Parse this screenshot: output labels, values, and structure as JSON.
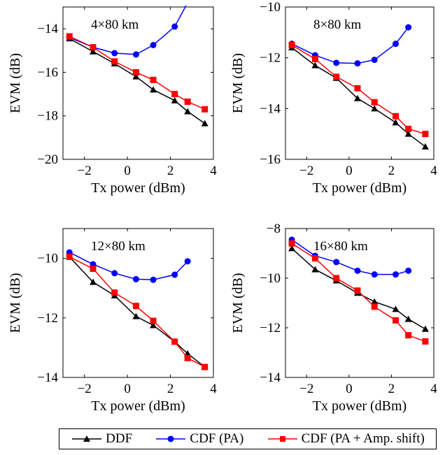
{
  "chart_data": [
    {
      "type": "line",
      "annotation": "4×80 km",
      "xlabel": "Tx power (dBm)",
      "ylabel": "EVM (dB)",
      "xlim": [
        -3,
        4
      ],
      "ylim": [
        -20,
        -13
      ],
      "xticks": [
        -2,
        0,
        2,
        4
      ],
      "xtick_labels": [
        "−2",
        "0",
        "2",
        "4"
      ],
      "yticks": [
        -20,
        -18,
        -16,
        -14
      ],
      "ytick_labels": [
        "−20",
        "−18",
        "−16",
        "−14"
      ],
      "grid": false,
      "series": [
        {
          "name": "DDF",
          "x": [
            -2.7,
            -1.6,
            -0.6,
            0.4,
            1.2,
            2.2,
            2.8,
            3.6
          ],
          "values": [
            -14.45,
            -15.05,
            -15.6,
            -16.2,
            -16.8,
            -17.3,
            -17.8,
            -18.35
          ]
        },
        {
          "name": "CDF (PA)",
          "x": [
            -2.7,
            -1.6,
            -0.6,
            0.4,
            1.2,
            2.2,
            2.8
          ],
          "values": [
            -14.4,
            -14.85,
            -15.12,
            -15.18,
            -14.75,
            -13.9,
            -12.8
          ]
        },
        {
          "name": "CDF (PA + Amp. shift)",
          "x": [
            -2.7,
            -1.6,
            -0.6,
            0.4,
            1.2,
            2.2,
            2.8,
            3.6
          ],
          "values": [
            -14.35,
            -14.85,
            -15.5,
            -16.0,
            -16.35,
            -17.0,
            -17.35,
            -17.7
          ]
        }
      ]
    },
    {
      "type": "line",
      "annotation": "8×80 km",
      "xlabel": "Tx power (dBm)",
      "ylabel": "EVM (dB)",
      "xlim": [
        -3,
        4
      ],
      "ylim": [
        -16,
        -10
      ],
      "xticks": [
        -2,
        0,
        2,
        4
      ],
      "xtick_labels": [
        "−2",
        "0",
        "2",
        "4"
      ],
      "yticks": [
        -16,
        -14,
        -12,
        -10
      ],
      "ytick_labels": [
        "−16",
        "−14",
        "−12",
        "−10"
      ],
      "grid": false,
      "series": [
        {
          "name": "DDF",
          "x": [
            -2.7,
            -1.6,
            -0.6,
            0.4,
            1.2,
            2.2,
            2.8,
            3.6
          ],
          "values": [
            -11.6,
            -12.3,
            -12.8,
            -13.6,
            -14.0,
            -14.55,
            -15.0,
            -15.5
          ]
        },
        {
          "name": "CDF (PA)",
          "x": [
            -2.7,
            -1.6,
            -0.6,
            0.4,
            1.2,
            2.2,
            2.8
          ],
          "values": [
            -11.45,
            -11.9,
            -12.2,
            -12.22,
            -12.08,
            -11.45,
            -10.8
          ]
        },
        {
          "name": "CDF (PA + Amp. shift)",
          "x": [
            -2.7,
            -1.6,
            -0.6,
            0.4,
            1.2,
            2.2,
            2.8,
            3.6
          ],
          "values": [
            -11.5,
            -12.05,
            -12.75,
            -13.2,
            -13.75,
            -14.3,
            -14.8,
            -15.0
          ]
        }
      ]
    },
    {
      "type": "line",
      "annotation": "12×80 km",
      "xlabel": "Tx power (dBm)",
      "ylabel": "EVM (dB)",
      "xlim": [
        -3,
        4
      ],
      "ylim": [
        -14,
        -9
      ],
      "xticks": [
        -2,
        0,
        2,
        4
      ],
      "xtick_labels": [
        "−2",
        "0",
        "2",
        "4"
      ],
      "yticks": [
        -14,
        -12,
        -10
      ],
      "ytick_labels": [
        "−14",
        "−12",
        "−10"
      ],
      "grid": false,
      "series": [
        {
          "name": "DDF",
          "x": [
            -2.7,
            -1.6,
            -0.6,
            0.4,
            1.2,
            2.2,
            2.8,
            3.6
          ],
          "values": [
            -9.95,
            -10.8,
            -11.25,
            -11.95,
            -12.25,
            -12.8,
            -13.2,
            -13.65
          ]
        },
        {
          "name": "CDF (PA)",
          "x": [
            -2.7,
            -1.6,
            -0.6,
            0.4,
            1.2,
            2.2,
            2.8
          ],
          "values": [
            -9.8,
            -10.2,
            -10.5,
            -10.7,
            -10.72,
            -10.55,
            -10.1
          ]
        },
        {
          "name": "CDF (PA + Amp. shift)",
          "x": [
            -2.7,
            -1.6,
            -0.6,
            0.4,
            1.2,
            2.2,
            2.8,
            3.6
          ],
          "values": [
            -9.95,
            -10.35,
            -11.15,
            -11.6,
            -12.1,
            -12.8,
            -13.35,
            -13.65
          ]
        }
      ]
    },
    {
      "type": "line",
      "annotation": "16×80 km",
      "xlabel": "Tx power (dBm)",
      "ylabel": "EVM (dB)",
      "xlim": [
        -3,
        4
      ],
      "ylim": [
        -14,
        -8
      ],
      "xticks": [
        -2,
        0,
        2,
        4
      ],
      "xtick_labels": [
        "−2",
        "0",
        "2",
        "4"
      ],
      "yticks": [
        -14,
        -12,
        -10,
        -8
      ],
      "ytick_labels": [
        "−14",
        "−12",
        "−10",
        "−8"
      ],
      "grid": false,
      "series": [
        {
          "name": "DDF",
          "x": [
            -2.7,
            -1.6,
            -0.6,
            0.4,
            1.2,
            2.2,
            2.8,
            3.6
          ],
          "values": [
            -8.8,
            -9.65,
            -10.1,
            -10.6,
            -10.95,
            -11.25,
            -11.65,
            -12.05
          ]
        },
        {
          "name": "CDF (PA)",
          "x": [
            -2.7,
            -1.6,
            -0.6,
            0.4,
            1.2,
            2.2,
            2.8
          ],
          "values": [
            -8.45,
            -9.1,
            -9.35,
            -9.7,
            -9.85,
            -9.85,
            -9.7
          ]
        },
        {
          "name": "CDF (PA + Amp. shift)",
          "x": [
            -2.7,
            -1.6,
            -0.6,
            0.4,
            1.2,
            2.2,
            2.8,
            3.6
          ],
          "values": [
            -8.6,
            -9.2,
            -10.0,
            -10.5,
            -11.15,
            -11.7,
            -12.3,
            -12.55
          ]
        }
      ]
    }
  ],
  "legend": {
    "placement": "bottom",
    "entries": [
      {
        "label": "DDF",
        "color": "#000000",
        "marker": "triangle"
      },
      {
        "label": "CDF (PA)",
        "color": "#0000ff",
        "marker": "circle"
      },
      {
        "label": "CDF (PA + Amp. shift)",
        "color": "#ff0000",
        "marker": "square"
      }
    ]
  },
  "colors": {
    "DDF": "#000000",
    "CDF (PA)": "#0000ff",
    "CDF (PA + Amp. shift)": "#ff0000"
  }
}
